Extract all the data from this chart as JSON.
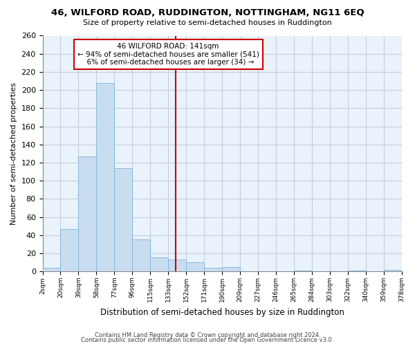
{
  "title": "46, WILFORD ROAD, RUDDINGTON, NOTTINGHAM, NG11 6EQ",
  "subtitle": "Size of property relative to semi-detached houses in Ruddington",
  "xlabel": "Distribution of semi-detached houses by size in Ruddington",
  "ylabel": "Number of semi-detached properties",
  "bar_labels": [
    "2sqm",
    "20sqm",
    "39sqm",
    "58sqm",
    "77sqm",
    "96sqm",
    "115sqm",
    "133sqm",
    "152sqm",
    "171sqm",
    "190sqm",
    "209sqm",
    "227sqm",
    "246sqm",
    "265sqm",
    "284sqm",
    "303sqm",
    "322sqm",
    "340sqm",
    "359sqm",
    "378sqm"
  ],
  "bar_values": [
    4,
    47,
    127,
    208,
    114,
    35,
    15,
    13,
    10,
    4,
    5,
    0,
    0,
    0,
    1,
    0,
    0,
    1,
    0,
    2
  ],
  "bar_color": "#c9ddf0",
  "bar_edge_color": "#7db4d8",
  "pct_smaller": 94,
  "count_smaller": 541,
  "pct_larger": 6,
  "count_larger": 34,
  "vline_color": "#cc0000",
  "ylim": [
    0,
    260
  ],
  "yticks": [
    0,
    20,
    40,
    60,
    80,
    100,
    120,
    140,
    160,
    180,
    200,
    220,
    240,
    260
  ],
  "footer1": "Contains HM Land Registry data © Crown copyright and database right 2024.",
  "footer2": "Contains public sector information licensed under the Open Government Licence v3.0.",
  "background_color": "#ffffff",
  "plot_bg_color": "#eaf2fb",
  "grid_color": "#c0d0e0"
}
